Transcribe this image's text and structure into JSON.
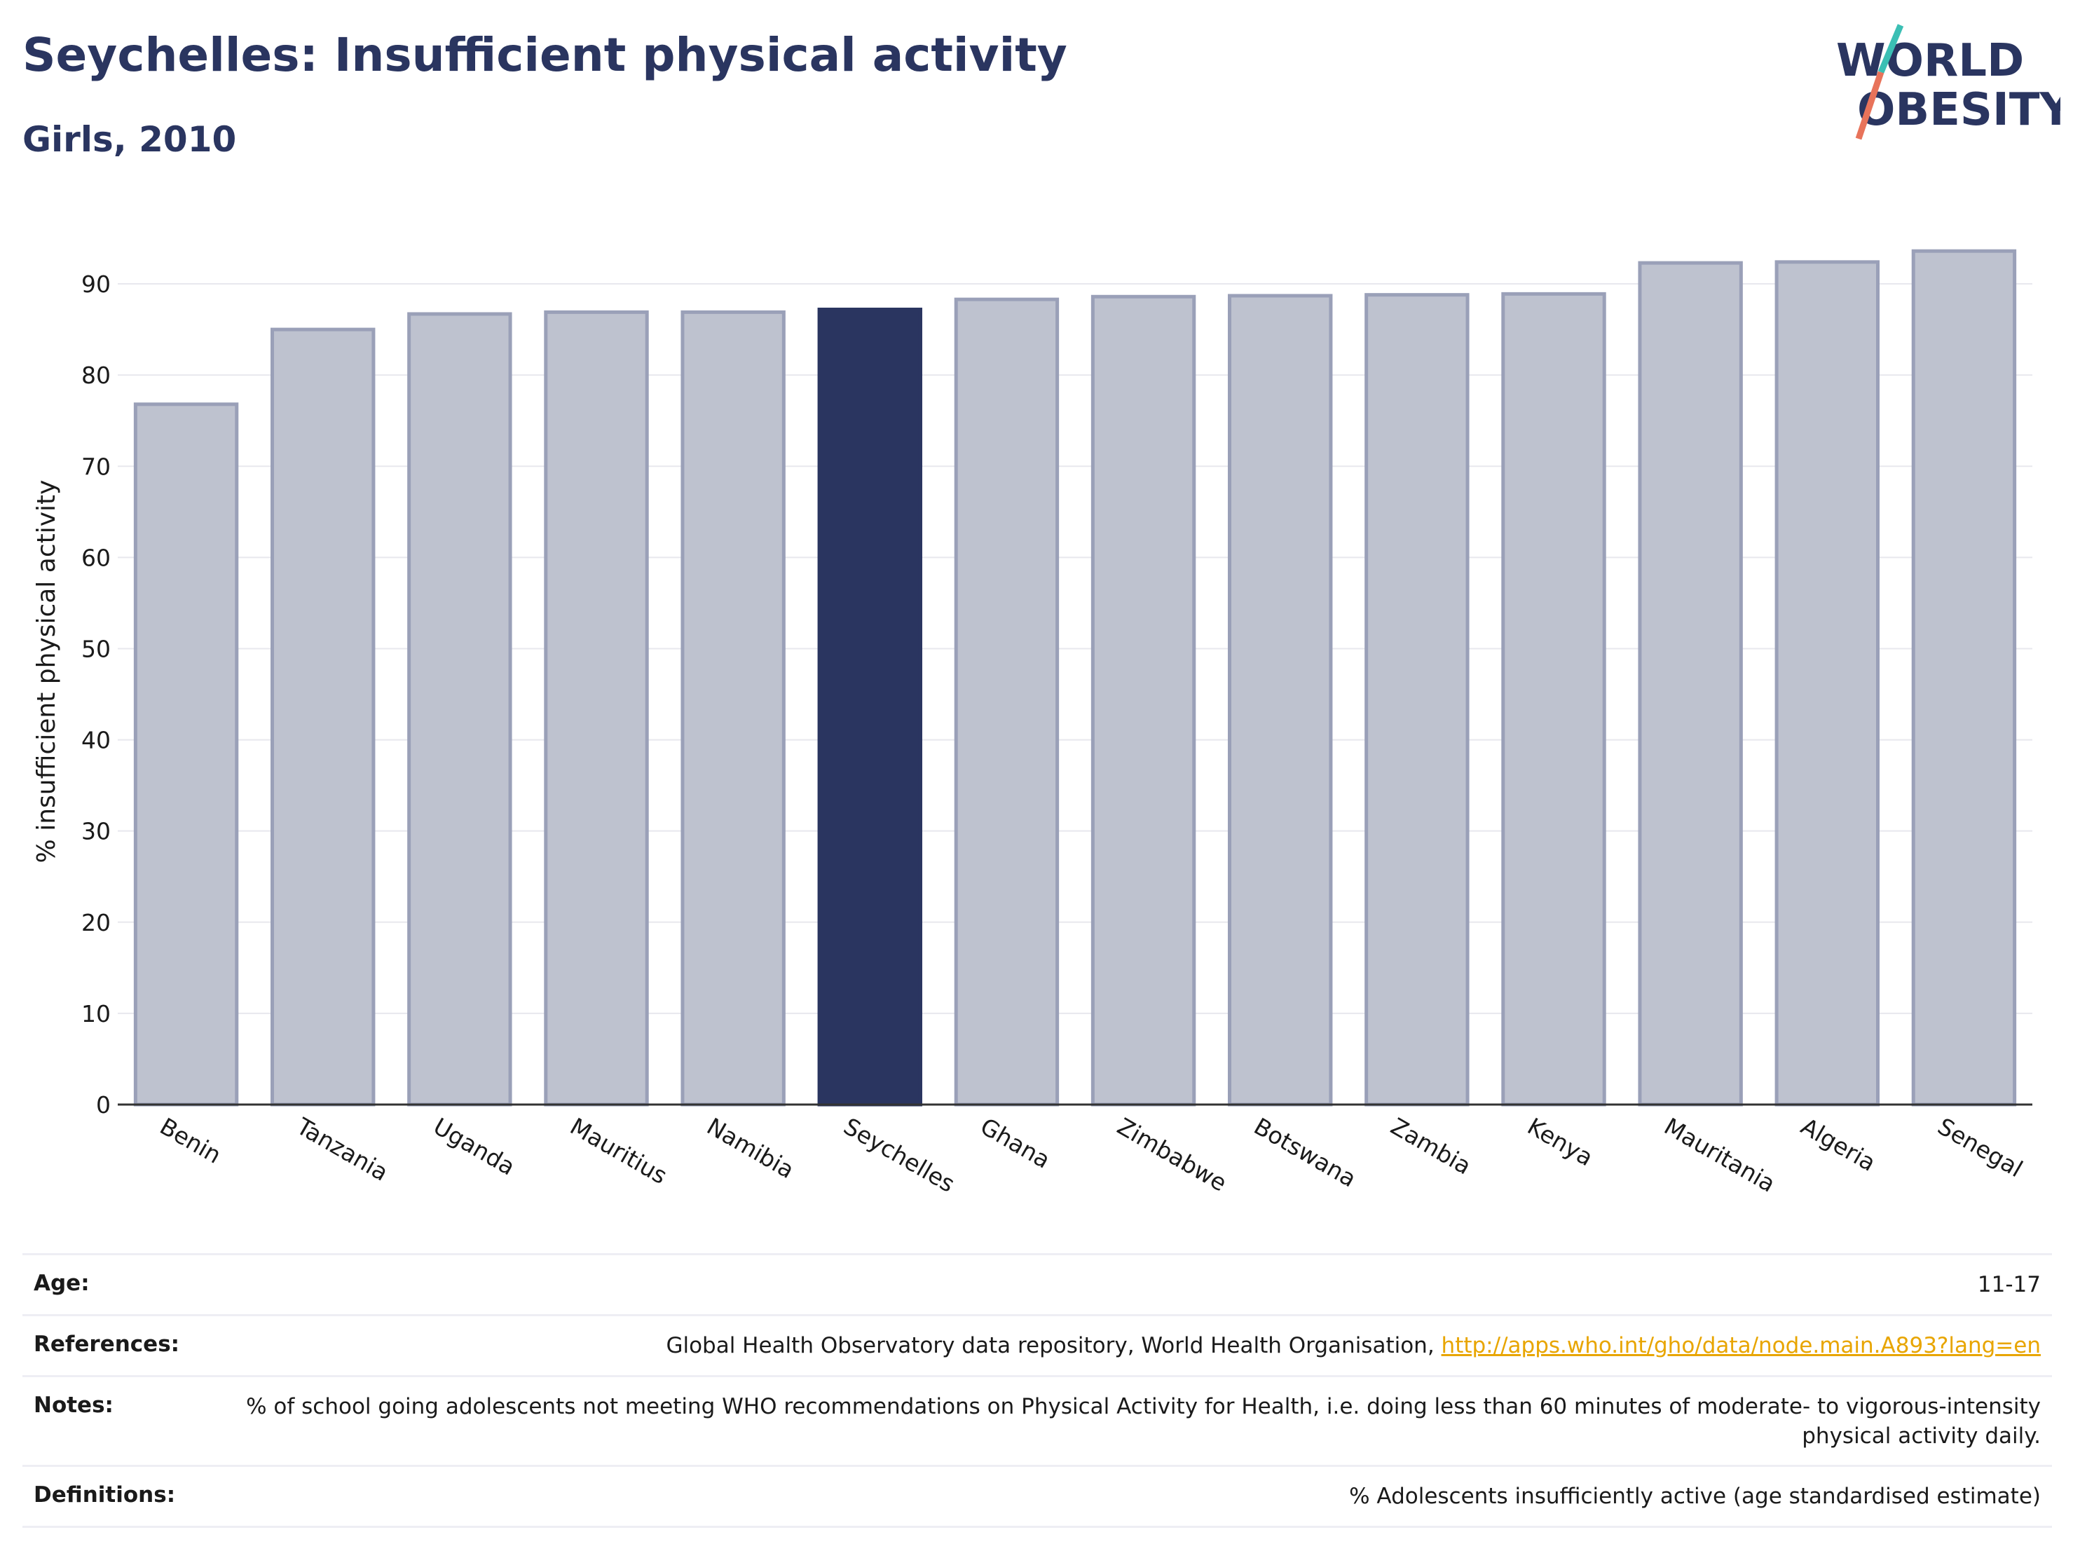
{
  "header": {
    "title": "Seychelles: Insufficient physical activity",
    "subtitle": "Girls, 2010"
  },
  "logo": {
    "line1": "WORLD",
    "line2": "OBESITY",
    "colors": {
      "text": "#2a3560",
      "slash_top": "#3bbfb4",
      "slash_bottom": "#e8735a"
    }
  },
  "chart_data": {
    "type": "bar",
    "title": "Seychelles: Insufficient physical activity",
    "subtitle": "Girls, 2010",
    "xlabel": "",
    "ylabel": "% insufficient physical activity",
    "ylim": [
      0,
      95
    ],
    "yticks": [
      0,
      10,
      20,
      30,
      40,
      50,
      60,
      70,
      80,
      90
    ],
    "grid": true,
    "categories": [
      "Benin",
      "Tanzania",
      "Uganda",
      "Mauritius",
      "Namibia",
      "Seychelles",
      "Ghana",
      "Zimbabwe",
      "Botswana",
      "Zambia",
      "Kenya",
      "Mauritania",
      "Algeria",
      "Senegal"
    ],
    "values": [
      76.8,
      85.0,
      86.7,
      86.9,
      86.9,
      87.2,
      88.3,
      88.6,
      88.7,
      88.8,
      88.9,
      92.3,
      92.4,
      93.6
    ],
    "highlight": "Seychelles",
    "colors": {
      "bar": "#bec2cf",
      "bar_edge": "#9aa0b8",
      "highlight": "#2a3560"
    }
  },
  "info": {
    "age_label": "Age:",
    "age_value": "11-17",
    "references_label": "References:",
    "references_text": "Global Health Observatory data repository, World Health Organisation, ",
    "references_link": "http://apps.who.int/gho/data/node.main.A893?lang=en",
    "notes_label": "Notes:",
    "notes_value": "% of school going adolescents not meeting WHO recommendations on Physical Activity for Health, i.e. doing less than 60 minutes of moderate- to vigorous-intensity physical activity daily.",
    "definitions_label": "Definitions:",
    "definitions_value": "% Adolescents insufficiently active (age standardised estimate)"
  }
}
